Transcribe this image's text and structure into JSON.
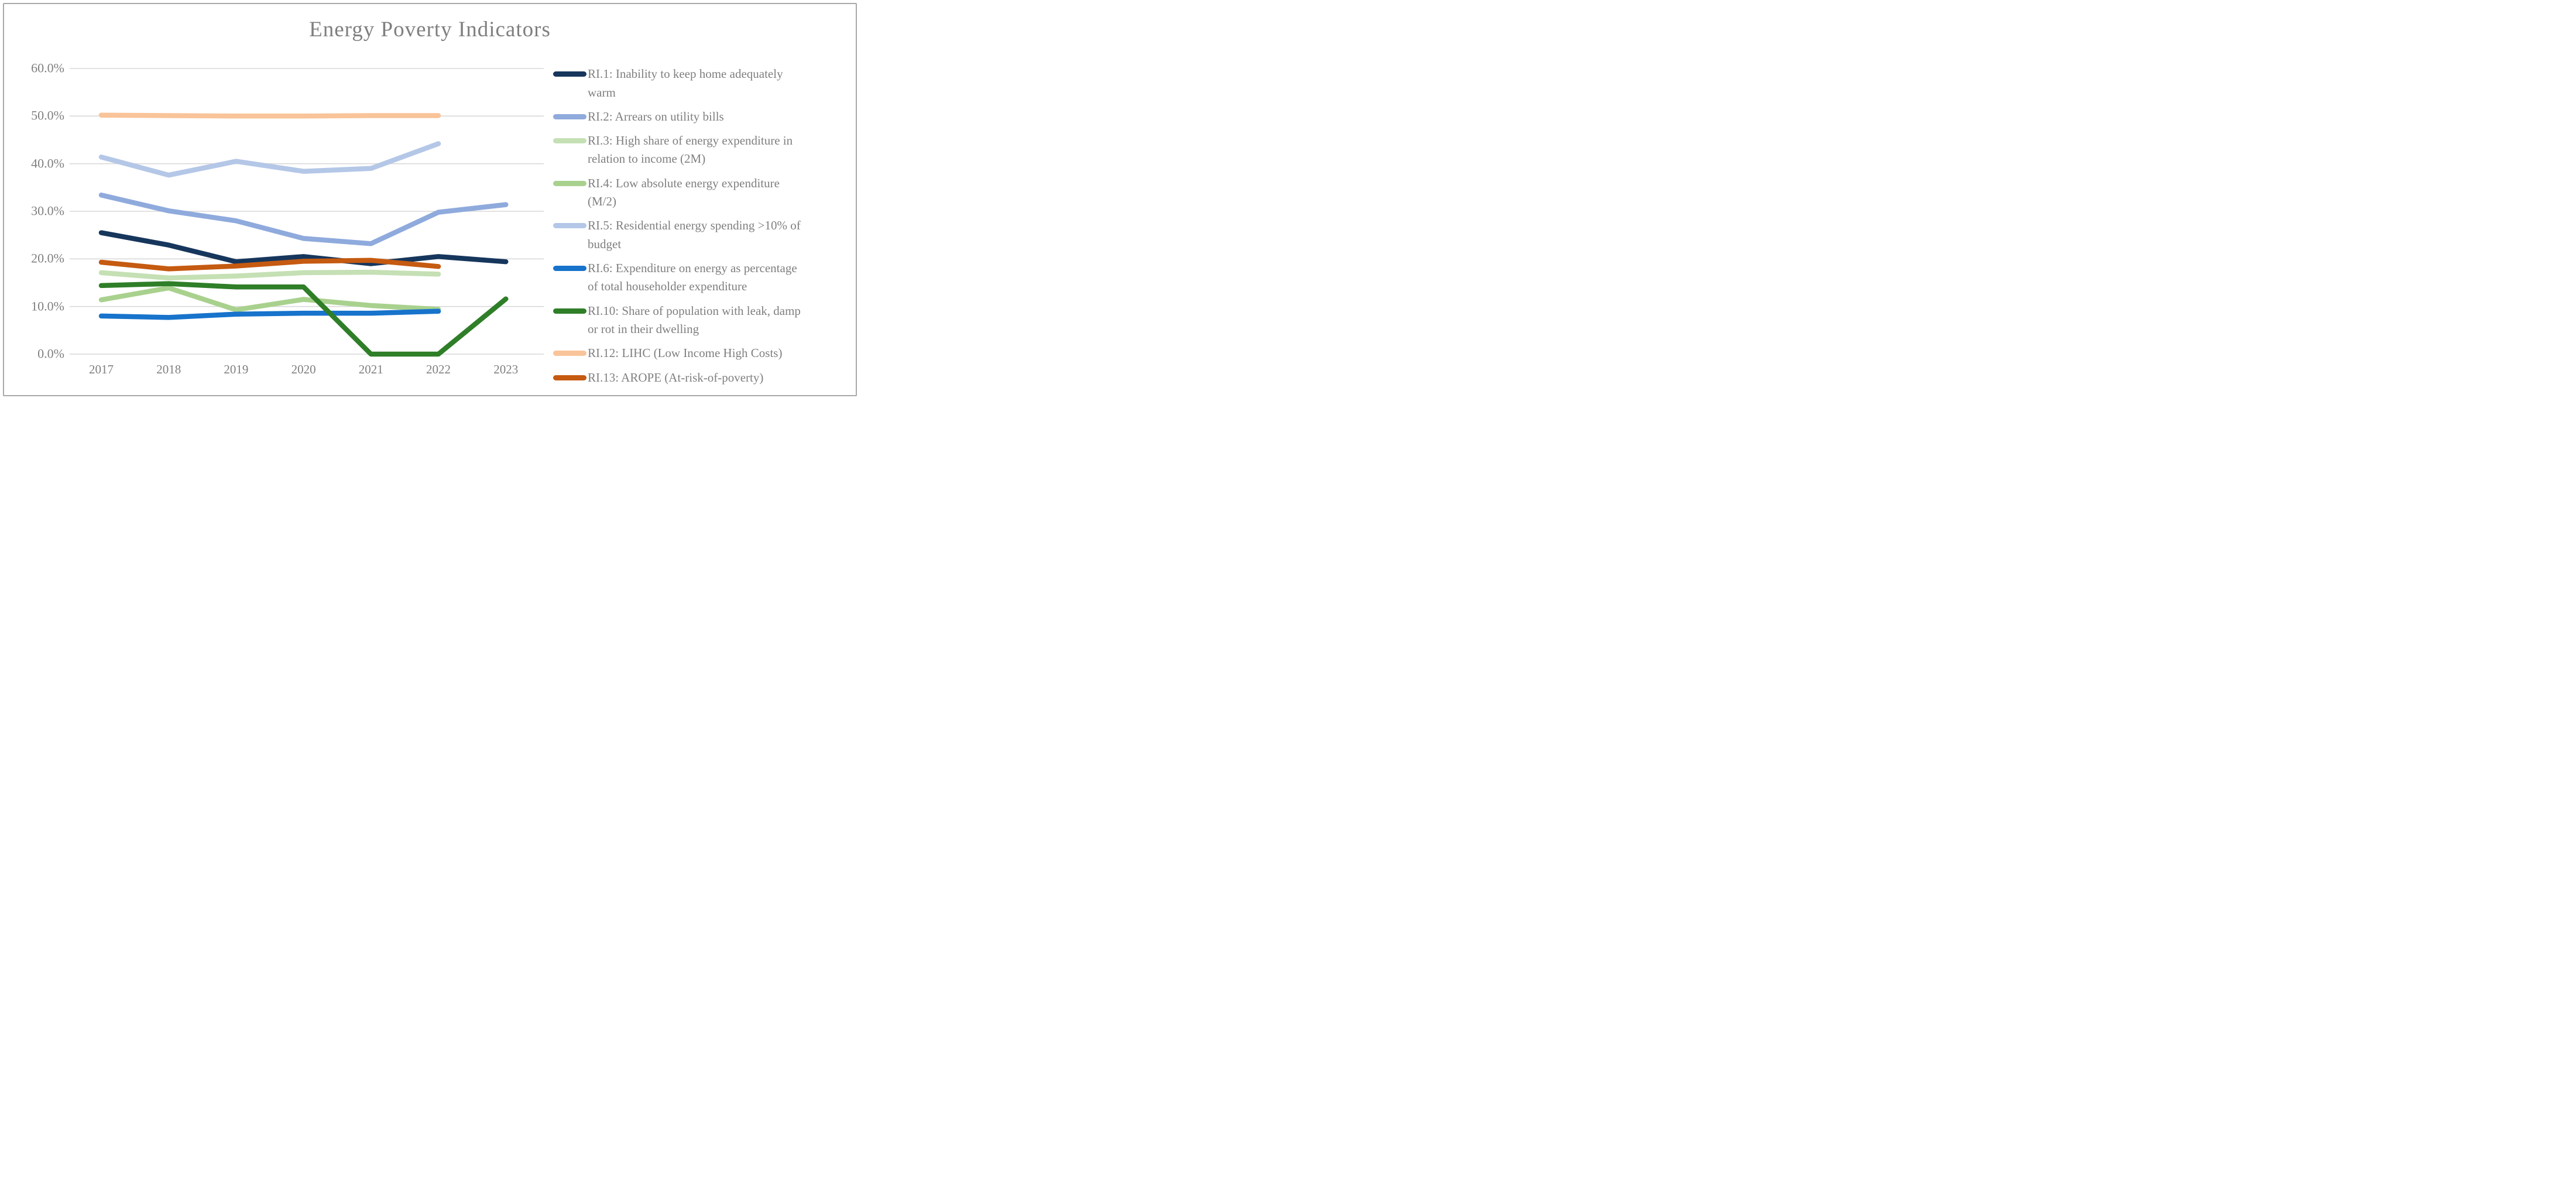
{
  "chart_data": {
    "type": "line",
    "title": "Energy Poverty Indicators",
    "xlabel": "",
    "ylabel": "",
    "unit": "percent",
    "ylim": [
      0,
      60
    ],
    "grid": "horizontal",
    "legend_position": "right",
    "years": [
      "2017",
      "2018",
      "2019",
      "2020",
      "2021",
      "2022",
      "2023"
    ],
    "y_ticks": [
      "60.0%",
      "50.0%",
      "40.0%",
      "30.0%",
      "20.0%",
      "10.0%",
      "0.0%"
    ],
    "series": [
      {
        "id": "RI.1",
        "name": "RI.1: Inability to keep home adequately\nwarm",
        "color": "#16365c",
        "values": [
          25.5,
          22.9,
          19.4,
          20.5,
          19.0,
          20.5,
          19.4
        ]
      },
      {
        "id": "RI.2",
        "name": "RI.2: Arrears on utility bills",
        "color": "#8faadc",
        "values": [
          33.4,
          30.1,
          28.0,
          24.3,
          23.2,
          29.8,
          31.4
        ]
      },
      {
        "id": "RI.3",
        "name": "RI.3: High share of energy expenditure in\nrelation to income (2M)",
        "color": "#c5e0b4",
        "values": [
          17.1,
          16.0,
          16.4,
          17.1,
          17.2,
          16.8,
          null
        ]
      },
      {
        "id": "RI.4",
        "name": "RI.4: Low absolute energy expenditure\n(M/2)",
        "color": "#a9d18e",
        "values": [
          11.4,
          13.9,
          9.3,
          11.5,
          10.2,
          9.4,
          null
        ]
      },
      {
        "id": "RI.5",
        "name": "RI.5: Residential energy spending >10% of\nbudget",
        "color": "#b4c7e7",
        "values": [
          41.4,
          37.6,
          40.5,
          38.4,
          39.0,
          44.2,
          null
        ]
      },
      {
        "id": "RI.6",
        "name": "RI.6: Expenditure on energy as percentage\nof total householder expenditure",
        "color": "#1773cb",
        "values": [
          8.0,
          7.7,
          8.4,
          8.6,
          8.6,
          9.0,
          null
        ]
      },
      {
        "id": "RI.10",
        "name": "RI.10: Share of population with leak, damp\nor rot in their dwelling",
        "color": "#2f7e28",
        "values": [
          14.4,
          14.8,
          14.1,
          14.1,
          0.0,
          0.0,
          11.6
        ]
      },
      {
        "id": "RI.12",
        "name": "RI.12: LIHC (Low Income High Costs)",
        "color": "#f9c499",
        "values": [
          50.2,
          50.1,
          50.0,
          50.0,
          50.1,
          50.1,
          null
        ]
      },
      {
        "id": "RI.13",
        "name": "RI.13: AROPE (At-risk-of-poverty)",
        "color": "#c55a11",
        "values": [
          19.3,
          17.9,
          18.5,
          19.5,
          19.7,
          18.4,
          null
        ]
      }
    ]
  },
  "style": {
    "gridline_color": "#d9d9d9",
    "text_color": "#7f7f7f",
    "border_color": "#a9a9a9",
    "background_color": "#ffffff"
  }
}
